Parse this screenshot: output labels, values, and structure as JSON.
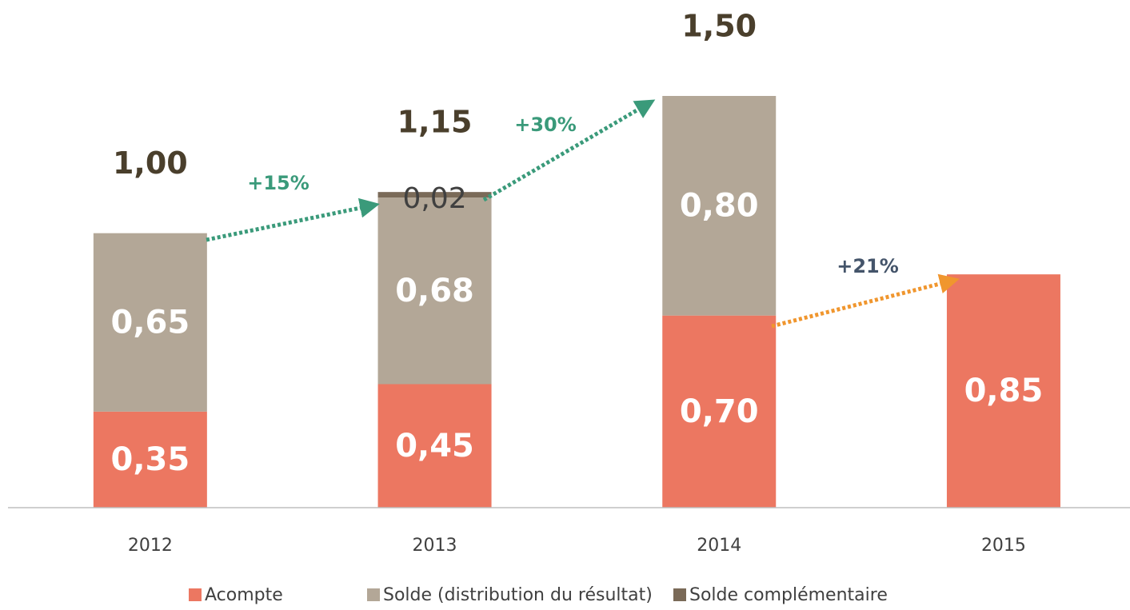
{
  "chart_data": {
    "type": "stacked_bar",
    "categories": [
      "2012",
      "2013",
      "2014",
      "2015"
    ],
    "series": [
      {
        "name": "Acompte",
        "color": "#ec7761",
        "values": [
          0.35,
          0.45,
          0.7,
          0.85
        ],
        "value_labels": [
          "0,35",
          "0,45",
          "0,70",
          "0,85"
        ]
      },
      {
        "name": "Solde (distribution du résultat)",
        "color": "#b3a797",
        "values": [
          0.65,
          0.68,
          0.8,
          null
        ],
        "value_labels": [
          "0,65",
          "0,68",
          "0,80",
          null
        ]
      },
      {
        "name": "Solde complémentaire",
        "color": "#7a6a58",
        "values": [
          null,
          0.02,
          null,
          null
        ],
        "value_labels": [
          null,
          "0,02",
          null,
          null
        ]
      }
    ],
    "totals": [
      1.0,
      1.15,
      1.5,
      null
    ],
    "total_labels": [
      "1,00",
      "1,15",
      "1,50",
      null
    ],
    "annotations": [
      "+15%",
      "+30%",
      "+21%"
    ],
    "ylim": [
      0,
      1.5
    ],
    "legend": "bottom"
  }
}
